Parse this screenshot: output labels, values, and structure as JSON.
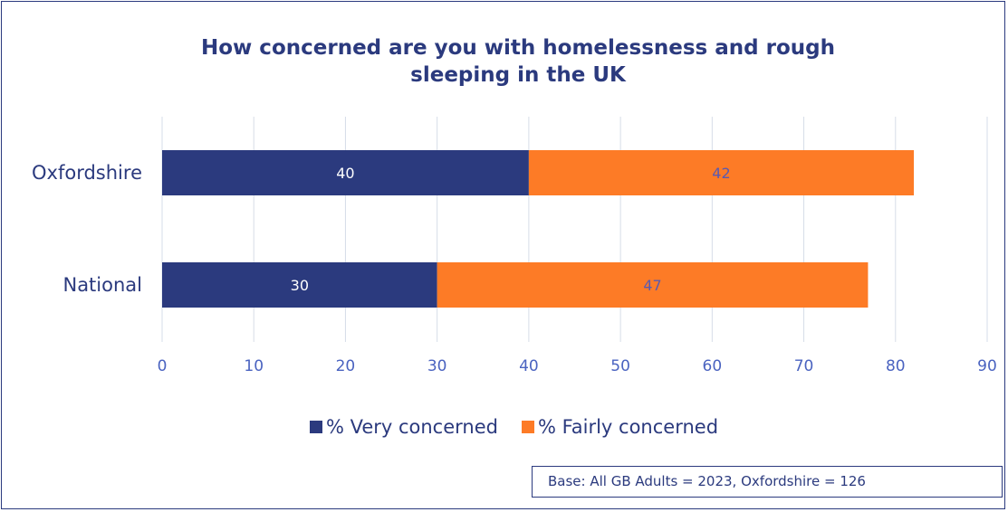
{
  "chart_data": {
    "type": "bar",
    "orientation": "horizontal",
    "stacked": true,
    "title_lines": [
      "How concerned are you with homelessness and rough",
      "sleeping in the UK"
    ],
    "categories": [
      "Oxfordshire",
      "National"
    ],
    "series": [
      {
        "name": "% Very concerned",
        "values": [
          40,
          30
        ],
        "color": "#2b3a7e",
        "label_color": "#ffffff"
      },
      {
        "name": "% Fairly concerned",
        "values": [
          42,
          47
        ],
        "color": "#fd7b26",
        "label_color": "#5a5ab0"
      }
    ],
    "xlim": [
      0,
      90
    ],
    "xticks": [
      0,
      10,
      20,
      30,
      40,
      50,
      60,
      70,
      80,
      90
    ],
    "grid": true,
    "legend_position": "bottom",
    "colors": {
      "text": "#2b3a7e",
      "tick": "#4a63c0",
      "grid": "#d6dde8"
    }
  },
  "base_note": "Base: All GB Adults = 2023, Oxfordshire = 126"
}
